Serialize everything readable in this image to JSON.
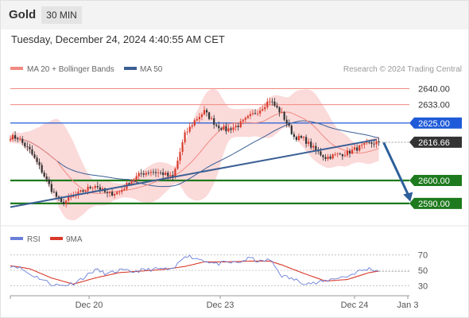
{
  "header": {
    "title": "Gold",
    "timeframe": "30 MIN"
  },
  "timestamp": "Tuesday, December 24, 2024 4:40:55 AM CET",
  "legend": {
    "ma20": {
      "label": "MA 20 + Bollinger Bands",
      "color": "#f08a80"
    },
    "ma50": {
      "label": "MA 50",
      "color": "#3a5f94"
    }
  },
  "rsi_legend": {
    "rsi": {
      "label": "RSI",
      "color": "#6a7fd8"
    },
    "ma9": {
      "label": "9MA",
      "color": "#d93a2b"
    }
  },
  "copyright": "Research © 2024 Trading Central",
  "colors": {
    "candle_up": "#d93a2b",
    "candle_down": "#333333",
    "band_fill": "#fbdada",
    "resistance": "#f08a80",
    "pivot": "#1f5bd8",
    "support": "#1e7a1e",
    "trendline": "#3a5f94",
    "arrow": "#2d5f9a",
    "current": "#333333"
  },
  "chart_data": [
    {
      "type": "candlestick",
      "title": "Gold",
      "timeframe": "30 MIN",
      "x_ticks": [
        "Dec 20",
        "Dec 23",
        "Dec 24",
        "Jan 3"
      ],
      "ylim": [
        2582,
        2645
      ],
      "levels": [
        {
          "price": 2640.0,
          "label": "2640.00",
          "kind": "resistance"
        },
        {
          "price": 2633.0,
          "label": "2633.00",
          "kind": "resistance"
        },
        {
          "price": 2625.0,
          "label": "2625.00",
          "kind": "pivot"
        },
        {
          "price": 2616.66,
          "label": "2616.66",
          "kind": "current"
        },
        {
          "price": 2600.0,
          "label": "2600.00",
          "kind": "support"
        },
        {
          "price": 2590.0,
          "label": "2590.00",
          "kind": "support"
        }
      ],
      "trendline": [
        {
          "bar": 0,
          "price": 2588.4
        },
        {
          "bar": 151,
          "price": 2617.8
        }
      ],
      "forecast_arrow": [
        {
          "bar": 154,
          "price": 2616.5
        },
        {
          "bar": 165,
          "price": 2590.8
        }
      ],
      "close_anchors": [
        [
          0,
          2619
        ],
        [
          3,
          2618.5
        ],
        [
          8,
          2613
        ],
        [
          12,
          2606
        ],
        [
          17,
          2596
        ],
        [
          21,
          2590
        ],
        [
          26,
          2593
        ],
        [
          31,
          2596
        ],
        [
          35,
          2598
        ],
        [
          40,
          2594
        ],
        [
          45,
          2595
        ],
        [
          50,
          2600
        ],
        [
          54,
          2603
        ],
        [
          58,
          2604
        ],
        [
          63,
          2603
        ],
        [
          67,
          2601
        ],
        [
          72,
          2620
        ],
        [
          76,
          2626
        ],
        [
          80,
          2630
        ],
        [
          85,
          2624
        ],
        [
          89,
          2622
        ],
        [
          94,
          2624
        ],
        [
          99,
          2628
        ],
        [
          103,
          2631
        ],
        [
          107,
          2635
        ],
        [
          112,
          2629
        ],
        [
          117,
          2619
        ],
        [
          121,
          2618
        ],
        [
          126,
          2613
        ],
        [
          130,
          2610
        ],
        [
          134,
          2611
        ],
        [
          139,
          2612
        ],
        [
          143,
          2614
        ],
        [
          148,
          2616
        ],
        [
          152,
          2616.66
        ]
      ]
    },
    {
      "type": "line",
      "title": "RSI",
      "series": [
        {
          "name": "RSI"
        },
        {
          "name": "9MA"
        }
      ],
      "y_ticks": [
        70,
        50,
        30
      ],
      "ylim": [
        20,
        80
      ],
      "rsi_anchors": [
        [
          0,
          56
        ],
        [
          3,
          55
        ],
        [
          8,
          45
        ],
        [
          12,
          40
        ],
        [
          17,
          32
        ],
        [
          21,
          30
        ],
        [
          26,
          33
        ],
        [
          31,
          42
        ],
        [
          35,
          51
        ],
        [
          40,
          45
        ],
        [
          45,
          50
        ],
        [
          50,
          48
        ],
        [
          54,
          50
        ],
        [
          58,
          51
        ],
        [
          63,
          52
        ],
        [
          67,
          50
        ],
        [
          72,
          70
        ],
        [
          76,
          66
        ],
        [
          80,
          63
        ],
        [
          85,
          58
        ],
        [
          89,
          60
        ],
        [
          94,
          60
        ],
        [
          99,
          66
        ],
        [
          103,
          61
        ],
        [
          107,
          64
        ],
        [
          112,
          43
        ],
        [
          117,
          38
        ],
        [
          121,
          34
        ],
        [
          126,
          33
        ],
        [
          130,
          36
        ],
        [
          134,
          40
        ],
        [
          139,
          42
        ],
        [
          143,
          48
        ],
        [
          148,
          52
        ],
        [
          152,
          49
        ]
      ],
      "ma9_anchors": [
        [
          0,
          56
        ],
        [
          8,
          52
        ],
        [
          17,
          40
        ],
        [
          26,
          32
        ],
        [
          35,
          40
        ],
        [
          45,
          47
        ],
        [
          54,
          49
        ],
        [
          63,
          51
        ],
        [
          72,
          55
        ],
        [
          80,
          61
        ],
        [
          89,
          61
        ],
        [
          99,
          62
        ],
        [
          107,
          62
        ],
        [
          112,
          57
        ],
        [
          121,
          46
        ],
        [
          130,
          36
        ],
        [
          139,
          38
        ],
        [
          148,
          47
        ],
        [
          152,
          49
        ]
      ]
    }
  ]
}
